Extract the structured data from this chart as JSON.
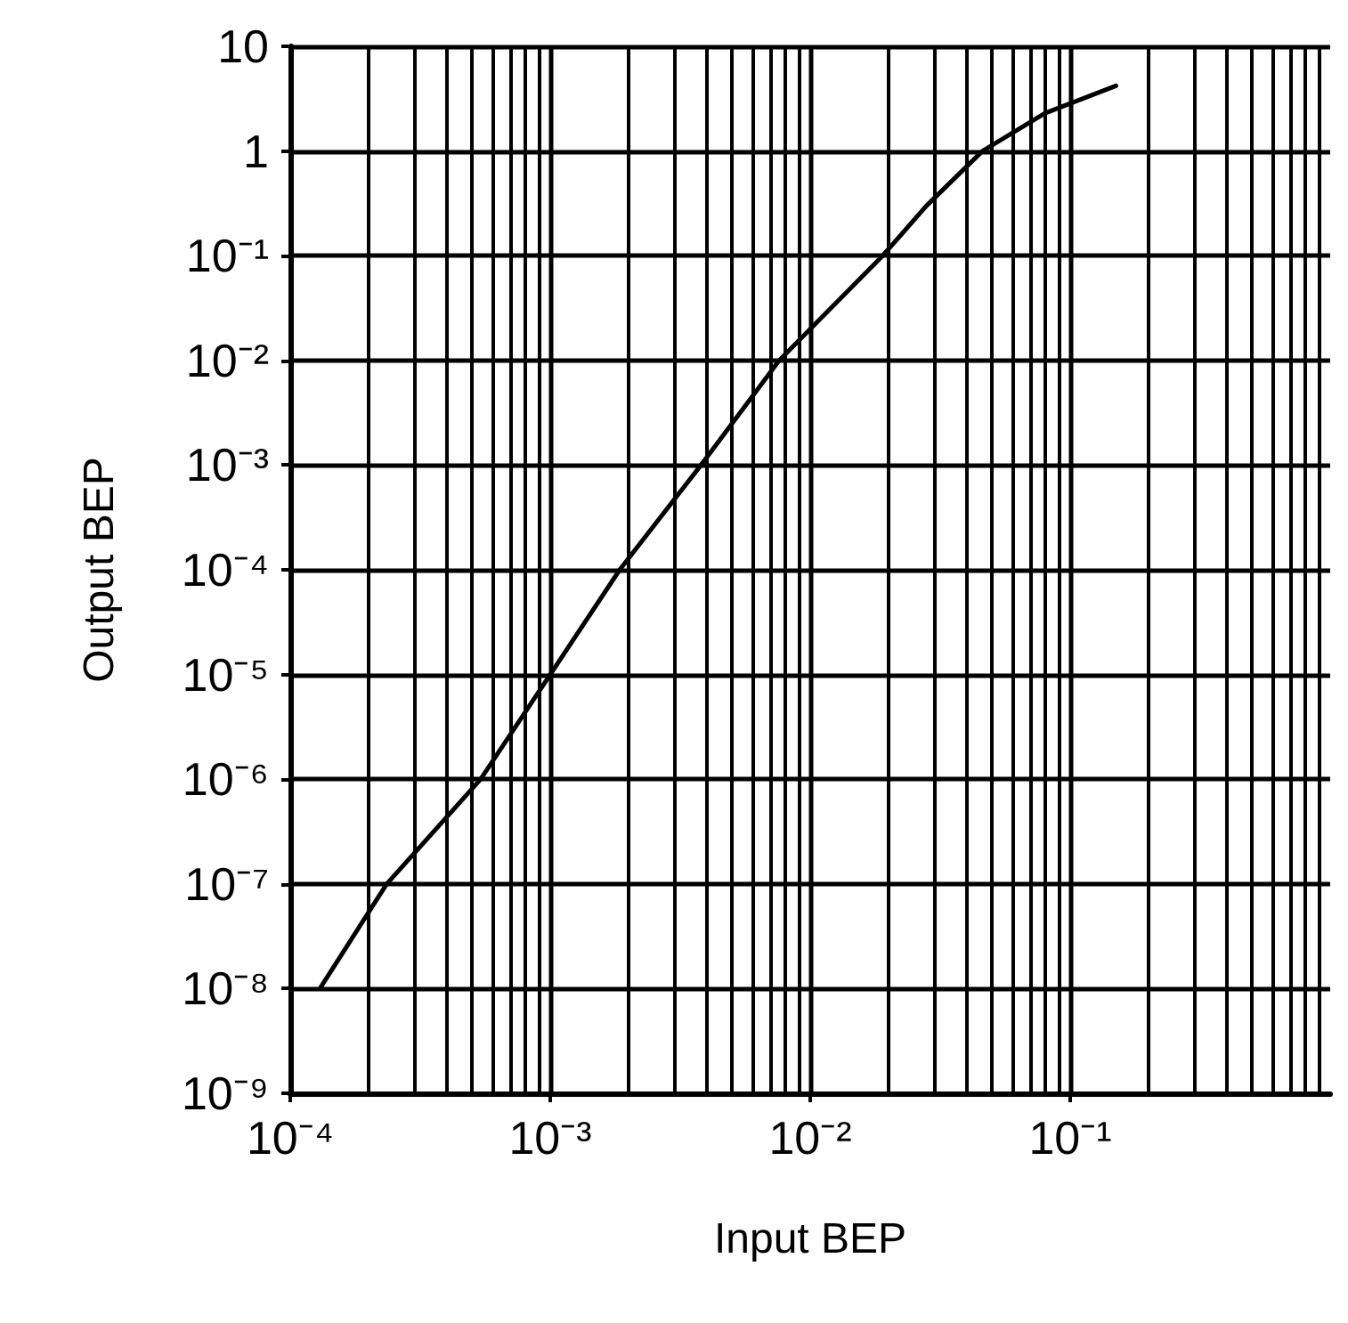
{
  "chart_data": {
    "type": "line",
    "xlabel": "Input BEP",
    "ylabel": "Output BEP",
    "log": "xy",
    "grid": true,
    "marker": "none",
    "line_style": "solid",
    "xlim": [
      0.0001,
      1
    ],
    "ylim": [
      1e-09,
      10
    ],
    "xticks": [
      {
        "value": 0.0001,
        "label": "10⁻⁴"
      },
      {
        "value": 0.001,
        "label": "10⁻³"
      },
      {
        "value": 0.01,
        "label": "10⁻²"
      },
      {
        "value": 0.1,
        "label": "10⁻¹"
      }
    ],
    "yticks": [
      {
        "value": 1e-09,
        "label": "10⁻⁹"
      },
      {
        "value": 1e-08,
        "label": "10⁻⁸"
      },
      {
        "value": 1e-07,
        "label": "10⁻⁷"
      },
      {
        "value": 1e-06,
        "label": "10⁻⁶"
      },
      {
        "value": 1e-05,
        "label": "10⁻⁵"
      },
      {
        "value": 0.0001,
        "label": "10⁻⁴"
      },
      {
        "value": 0.001,
        "label": "10⁻³"
      },
      {
        "value": 0.01,
        "label": "10⁻²"
      },
      {
        "value": 0.1,
        "label": "10⁻¹"
      },
      1,
      10
    ],
    "series": [
      {
        "color": "#000000",
        "x": [
          0.00013,
          0.000235,
          0.00054,
          0.001,
          0.00185,
          0.0038,
          0.0076,
          0.019,
          0.028,
          0.046,
          0.08,
          0.15
        ],
        "values": [
          1e-08,
          1e-07,
          1e-06,
          1e-05,
          0.0001,
          0.001,
          0.01,
          0.1,
          0.3,
          1,
          2.3,
          4.2
        ]
      }
    ]
  }
}
